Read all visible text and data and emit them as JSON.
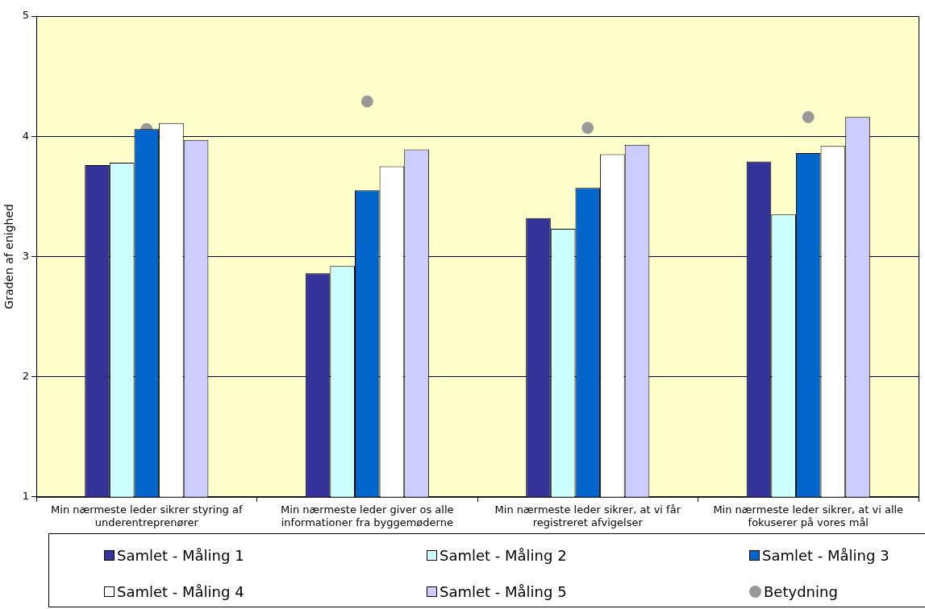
{
  "chart_data": {
    "type": "bar",
    "ylabel": "Graden af enighed",
    "categories": [
      "Min nærmeste leder sikrer styring af underentreprenører",
      "Min nærmeste leder giver os alle informationer fra byggemøderne",
      "Min nærmeste leder sikrer, at vi får registreret afvigelser",
      "Min nærmeste leder sikrer, at vi alle fokuserer på vores mål"
    ],
    "series": [
      {
        "name": "Samlet - Måling 1",
        "color": "#333399",
        "values": [
          3.76,
          2.86,
          3.32,
          3.79
        ]
      },
      {
        "name": "Samlet - Måling 2",
        "color": "#ccffff",
        "values": [
          3.78,
          2.92,
          3.23,
          3.35
        ]
      },
      {
        "name": "Samlet - Måling 3",
        "color": "#0066cc",
        "values": [
          4.06,
          3.55,
          3.57,
          3.86
        ]
      },
      {
        "name": "Samlet - Måling 4",
        "color": "#ffffff",
        "values": [
          4.11,
          3.75,
          3.85,
          3.92
        ]
      },
      {
        "name": "Samlet - Måling 5",
        "color": "#ccccff",
        "values": [
          3.97,
          3.89,
          3.93,
          4.16
        ]
      },
      {
        "name": "Betydning",
        "type": "scatter",
        "marker": "circle",
        "color": "#999999",
        "values": [
          4.06,
          4.29,
          4.07,
          4.16
        ]
      }
    ],
    "ylim": [
      1,
      5
    ],
    "yticks": [
      1,
      2,
      3,
      4,
      5
    ],
    "grid": "y",
    "legend": "bottom"
  }
}
